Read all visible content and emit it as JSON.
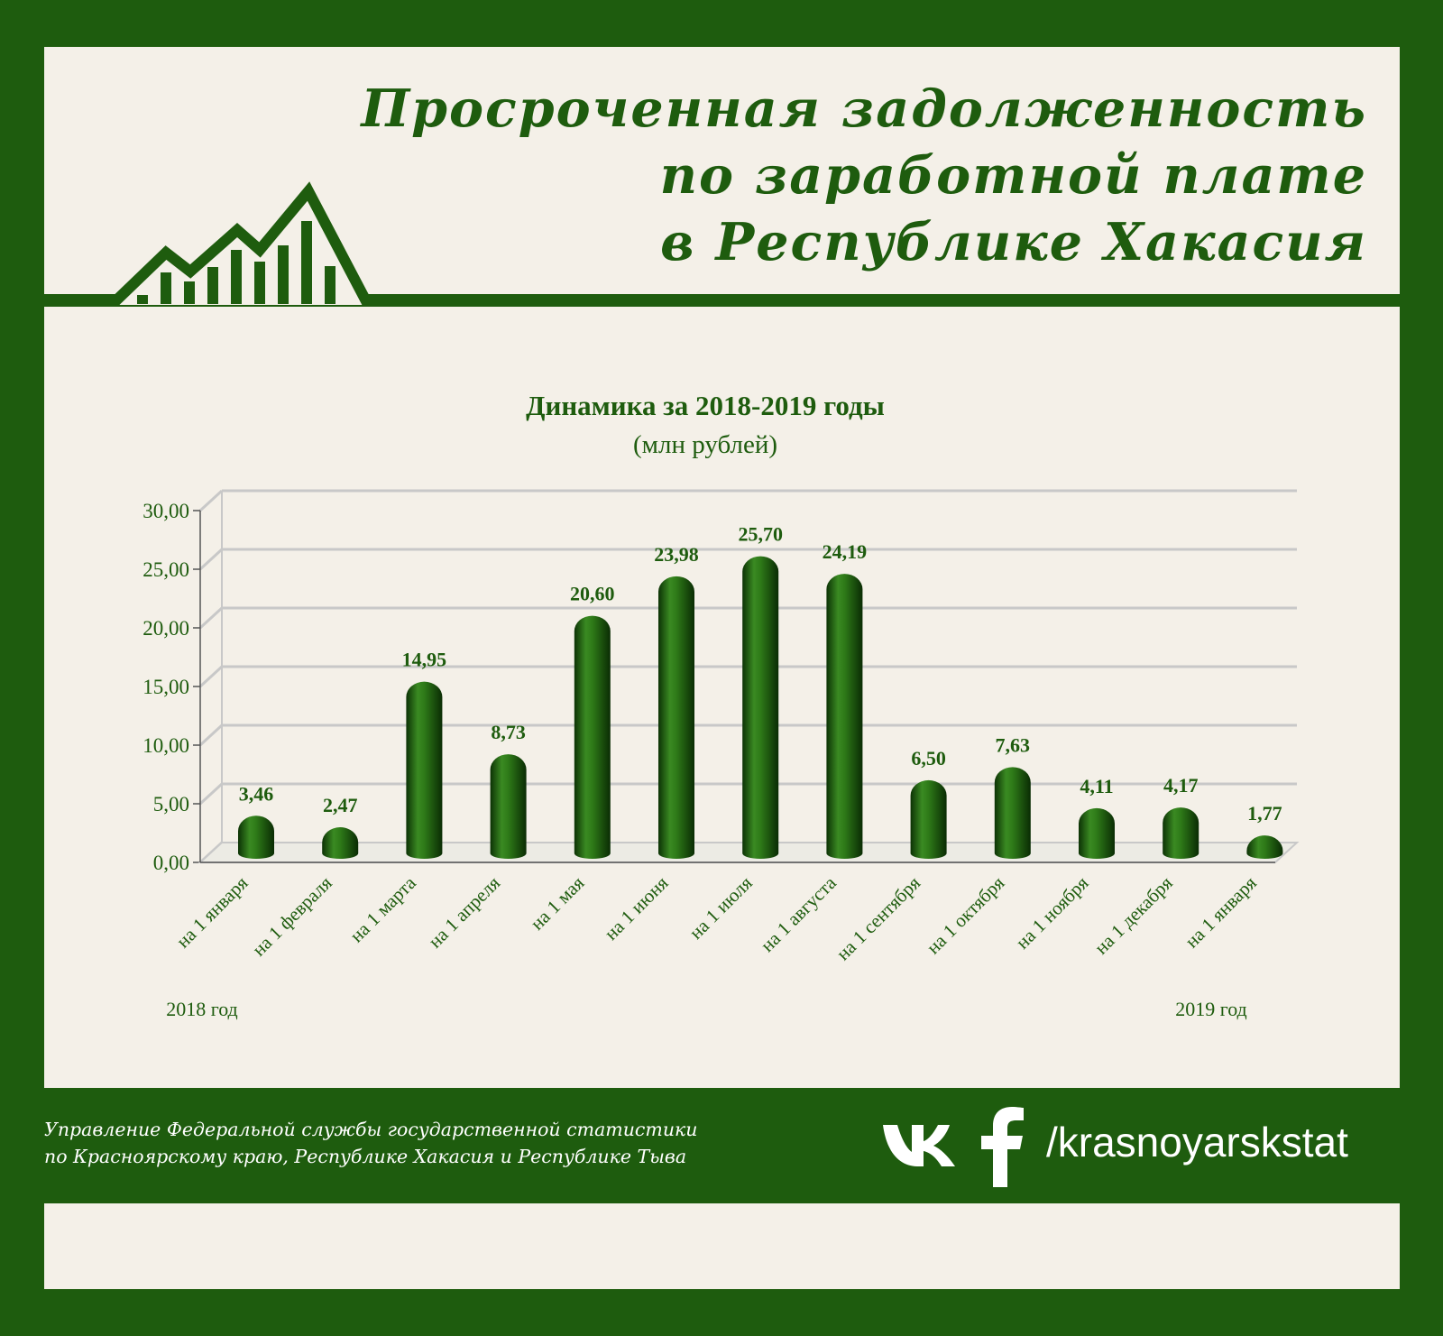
{
  "header": {
    "title_lines": [
      "Просроченная задолженность",
      "по заработной плате",
      "в Республике Хакасия"
    ],
    "logo_icon": "rising-bar-chart-icon"
  },
  "chart_data": {
    "type": "bar",
    "title": "Динамика за 2018-2019 годы",
    "subtitle": "(млн рублей)",
    "categories": [
      "на 1 января",
      "на 1 февраля",
      "на 1 марта",
      "на 1 апреля",
      "на 1 мая",
      "на 1 июня",
      "на 1 июля",
      "на 1 августа",
      "на 1 сентября",
      "на 1 октября",
      "на 1 ноября",
      "на 1 декабря",
      "на 1 января"
    ],
    "values": [
      3.46,
      2.47,
      14.95,
      8.73,
      20.6,
      23.98,
      25.7,
      24.19,
      6.5,
      7.63,
      4.11,
      4.17,
      1.77
    ],
    "value_labels": [
      "3,46",
      "2,47",
      "14,95",
      "8,73",
      "20,60",
      "23,98",
      "25,70",
      "24,19",
      "6,50",
      "7,63",
      "4,11",
      "4,17",
      "1,77"
    ],
    "y_ticks": [
      "0,00",
      "5,00",
      "10,00",
      "15,00",
      "20,00",
      "25,00",
      "30,00"
    ],
    "ylim": [
      0,
      30
    ],
    "year_labels": [
      "2018 год",
      "2019 год"
    ],
    "grid": true,
    "bar_color": "#1e5c0e"
  },
  "footer": {
    "org_lines": [
      "Управление Федеральной службы государственной статистики",
      "по Красноярскому краю, Республике Хакасия и Республике Тыва"
    ],
    "social_icons": [
      "vk-icon",
      "facebook-icon"
    ],
    "handle": "/krasnoyarskstat"
  },
  "colors": {
    "frame": "#1e5c0e",
    "panel": "#f4f0e8",
    "grid": "#c8c8c8",
    "text": "#1e5c0e"
  }
}
